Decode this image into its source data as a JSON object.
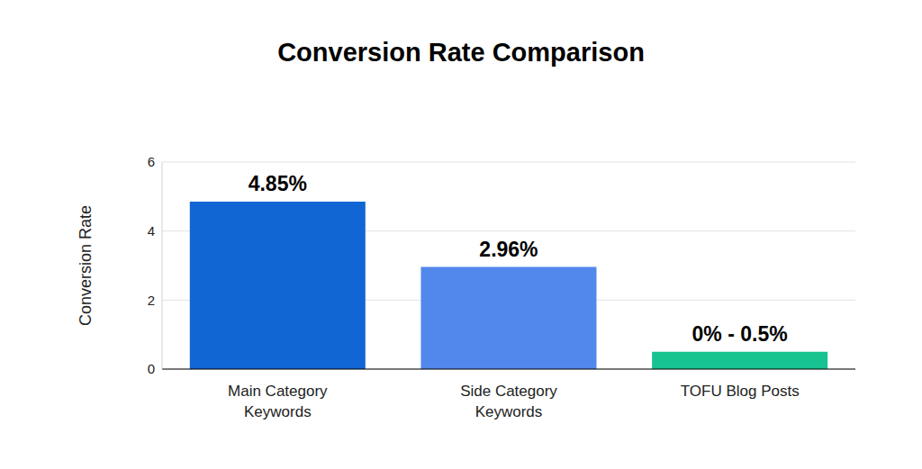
{
  "chart_data": {
    "type": "bar",
    "title": "Conversion Rate Comparison",
    "y_label": "Conversion Rate",
    "categories": [
      "Main Category Keywords",
      "Side Category Keywords",
      "TOFU Blog Posts"
    ],
    "values": [
      4.85,
      2.96,
      0.5
    ],
    "value_labels": [
      "4.85%",
      "2.96%",
      "0% - 0.5%"
    ],
    "colors": [
      "#1166d4",
      "#5288ec",
      "#17c390"
    ],
    "ylim": [
      0,
      6
    ],
    "yticks": [
      0,
      2,
      4,
      6
    ],
    "grid": true,
    "data_labels": true
  }
}
